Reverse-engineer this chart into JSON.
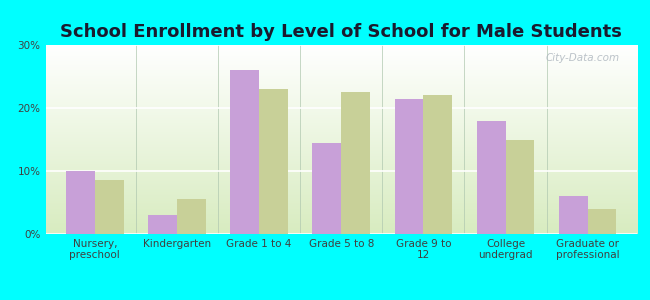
{
  "title": "School Enrollment by Level of School for Male Students",
  "categories": [
    "Nursery,\npreschool",
    "Kindergarten",
    "Grade 1 to 4",
    "Grade 5 to 8",
    "Grade 9 to\n12",
    "College\nundergrad",
    "Graduate or\nprofessional"
  ],
  "fairfield": [
    10,
    3,
    26,
    14.5,
    21.5,
    18,
    6
  ],
  "new_jersey": [
    8.5,
    5.5,
    23,
    22.5,
    22,
    15,
    4
  ],
  "fairfield_color": "#c8a0d8",
  "new_jersey_color": "#c8d098",
  "background_color": "#00ffff",
  "grad_bottom": "#d8ecc0",
  "grad_top": "#ffffff",
  "ylim": [
    0,
    30
  ],
  "yticks": [
    0,
    10,
    20,
    30
  ],
  "ytick_labels": [
    "0%",
    "10%",
    "20%",
    "30%"
  ],
  "bar_width": 0.35,
  "title_fontsize": 13,
  "tick_fontsize": 7.5,
  "legend_fontsize": 9,
  "watermark": "City-Data.com"
}
